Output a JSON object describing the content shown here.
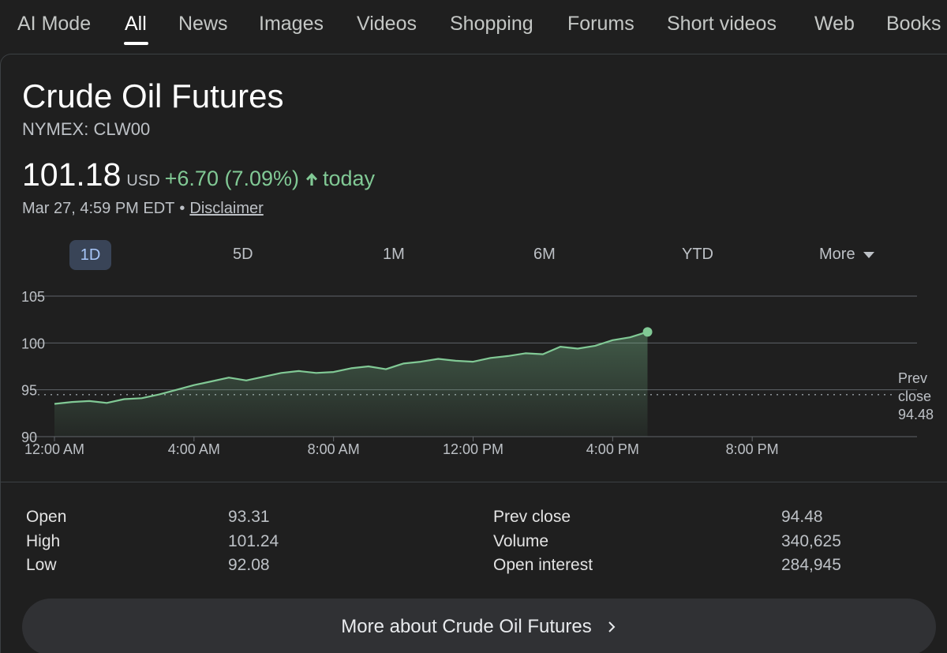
{
  "nav": {
    "tabs": [
      {
        "label": "AI Mode"
      },
      {
        "label": "All"
      },
      {
        "label": "News"
      },
      {
        "label": "Images"
      },
      {
        "label": "Videos"
      },
      {
        "label": "Shopping"
      },
      {
        "label": "Forums"
      },
      {
        "label": "Short videos"
      },
      {
        "label": "Web"
      },
      {
        "label": "Books"
      }
    ],
    "active": "All"
  },
  "quote": {
    "title": "Crude Oil Futures",
    "ticker": "NYMEX: CLW00",
    "price": "101.18",
    "currency": "USD",
    "change": "+6.70 (7.09%)",
    "direction_icon": "arrow-up-icon",
    "period": "today",
    "timestamp": "Mar 27, 4:59 PM EDT",
    "separator": "•",
    "disclaimer": "Disclaimer"
  },
  "ranges": {
    "options": [
      "1D",
      "5D",
      "1M",
      "6M",
      "YTD"
    ],
    "more_label": "More",
    "selected": "1D"
  },
  "colors": {
    "positive": "#81c995",
    "accent_bg": "#394457",
    "accent_text": "#a8c7fa",
    "background": "#1f1f1f"
  },
  "chart_data": {
    "type": "area",
    "x_unit": "hour of day",
    "x_ticks": [
      {
        "x": 0,
        "label": "12:00 AM"
      },
      {
        "x": 4,
        "label": "4:00 AM"
      },
      {
        "x": 8,
        "label": "8:00 AM"
      },
      {
        "x": 12,
        "label": "12:00 PM"
      },
      {
        "x": 16,
        "label": "4:00 PM"
      },
      {
        "x": 20,
        "label": "8:00 PM"
      }
    ],
    "xlim": [
      0,
      24
    ],
    "y_ticks": [
      90,
      95,
      100,
      105
    ],
    "ylim": [
      90,
      105
    ],
    "grid": true,
    "reference_line": {
      "value": 94.48,
      "label_lines": [
        "Prev",
        "close",
        "94.48"
      ]
    },
    "series": [
      {
        "x": [
          0,
          0.5,
          1,
          1.5,
          2,
          2.5,
          3,
          3.5,
          4,
          4.5,
          5,
          5.5,
          6,
          6.5,
          7,
          7.5,
          8,
          8.5,
          9,
          9.5,
          10,
          10.5,
          11,
          11.5,
          12,
          12.5,
          13,
          13.5,
          14,
          14.5,
          15,
          15.5,
          16,
          16.5,
          17
        ],
        "y": [
          93.5,
          93.7,
          93.8,
          93.6,
          94.0,
          94.1,
          94.5,
          95.0,
          95.5,
          95.9,
          96.3,
          96.0,
          96.4,
          96.8,
          97.0,
          96.8,
          96.9,
          97.3,
          97.5,
          97.2,
          97.8,
          98.0,
          98.3,
          98.1,
          98.0,
          98.4,
          98.6,
          98.9,
          98.8,
          99.6,
          99.4,
          99.7,
          100.3,
          100.6,
          101.18
        ]
      }
    ],
    "last_point": {
      "x": 17,
      "y": 101.18
    }
  },
  "stats": {
    "left": [
      {
        "label": "Open",
        "value": "93.31"
      },
      {
        "label": "High",
        "value": "101.24"
      },
      {
        "label": "Low",
        "value": "92.08"
      }
    ],
    "right": [
      {
        "label": "Prev close",
        "value": "94.48"
      },
      {
        "label": "Volume",
        "value": "340,625"
      },
      {
        "label": "Open interest",
        "value": "284,945"
      }
    ]
  },
  "more_button": {
    "label": "More about Crude Oil Futures",
    "icon": "chevron-right-icon"
  }
}
